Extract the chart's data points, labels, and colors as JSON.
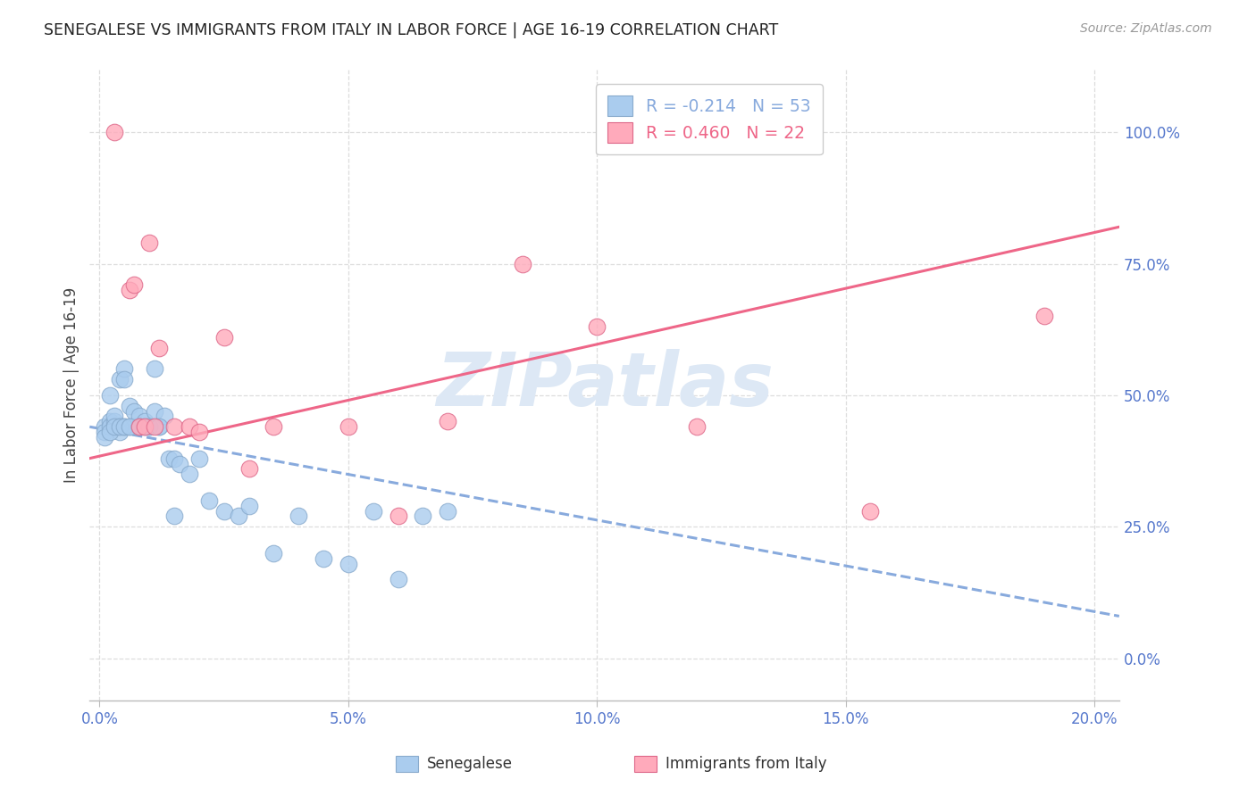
{
  "title": "SENEGALESE VS IMMIGRANTS FROM ITALY IN LABOR FORCE | AGE 16-19 CORRELATION CHART",
  "source": "Source: ZipAtlas.com",
  "ylabel": "In Labor Force | Age 16-19",
  "xlim": [
    -0.002,
    0.205
  ],
  "ylim": [
    -0.08,
    1.12
  ],
  "yticks": [
    0.0,
    0.25,
    0.5,
    0.75,
    1.0
  ],
  "ytick_labels": [
    "0.0%",
    "25.0%",
    "50.0%",
    "75.0%",
    "100.0%"
  ],
  "xticks": [
    0.0,
    0.05,
    0.1,
    0.15,
    0.2
  ],
  "xtick_labels": [
    "0.0%",
    "5.0%",
    "10.0%",
    "15.0%",
    "20.0%"
  ],
  "grid_color": "#dddddd",
  "background_color": "#ffffff",
  "senegalese_color": "#aaccee",
  "senegalese_edge_color": "#88aacc",
  "italy_color": "#ffaabb",
  "italy_edge_color": "#dd6688",
  "senegalese_line_color": "#88aadd",
  "italy_line_color": "#ee6688",
  "legend_text1": "R = -0.214   N = 53",
  "legend_text2": "R = 0.460   N = 22",
  "watermark": "ZIPatlas",
  "watermark_color": "#dde8f5",
  "label_bottom1": "Senegalese",
  "label_bottom2": "Immigrants from Italy",
  "tick_label_color": "#5577cc",
  "senegalese_x": [
    0.001,
    0.001,
    0.002,
    0.002,
    0.002,
    0.003,
    0.003,
    0.003,
    0.004,
    0.004,
    0.004,
    0.005,
    0.005,
    0.005,
    0.006,
    0.006,
    0.007,
    0.007,
    0.008,
    0.009,
    0.009,
    0.01,
    0.011,
    0.011,
    0.012,
    0.013,
    0.014,
    0.015,
    0.016,
    0.018,
    0.02,
    0.022,
    0.025,
    0.028,
    0.03,
    0.035,
    0.04,
    0.045,
    0.05,
    0.055,
    0.06,
    0.065,
    0.07,
    0.001,
    0.002,
    0.003,
    0.004,
    0.005,
    0.006,
    0.008,
    0.01,
    0.012,
    0.015
  ],
  "senegalese_y": [
    0.44,
    0.43,
    0.45,
    0.44,
    0.5,
    0.44,
    0.45,
    0.46,
    0.44,
    0.43,
    0.53,
    0.44,
    0.55,
    0.53,
    0.44,
    0.48,
    0.47,
    0.44,
    0.46,
    0.44,
    0.45,
    0.44,
    0.47,
    0.55,
    0.44,
    0.46,
    0.38,
    0.38,
    0.37,
    0.35,
    0.38,
    0.3,
    0.28,
    0.27,
    0.29,
    0.2,
    0.27,
    0.19,
    0.18,
    0.28,
    0.15,
    0.27,
    0.28,
    0.42,
    0.43,
    0.44,
    0.44,
    0.44,
    0.44,
    0.44,
    0.44,
    0.44,
    0.27
  ],
  "italy_x": [
    0.003,
    0.006,
    0.007,
    0.008,
    0.009,
    0.01,
    0.011,
    0.012,
    0.015,
    0.018,
    0.02,
    0.025,
    0.03,
    0.035,
    0.05,
    0.06,
    0.07,
    0.085,
    0.1,
    0.12,
    0.155,
    0.19
  ],
  "italy_y": [
    1.0,
    0.7,
    0.71,
    0.44,
    0.44,
    0.79,
    0.44,
    0.59,
    0.44,
    0.44,
    0.43,
    0.61,
    0.36,
    0.44,
    0.44,
    0.27,
    0.45,
    0.75,
    0.63,
    0.44,
    0.28,
    0.65
  ],
  "senegalese_trend": [
    0.44,
    0.08
  ],
  "italy_trend": [
    0.38,
    0.82
  ]
}
